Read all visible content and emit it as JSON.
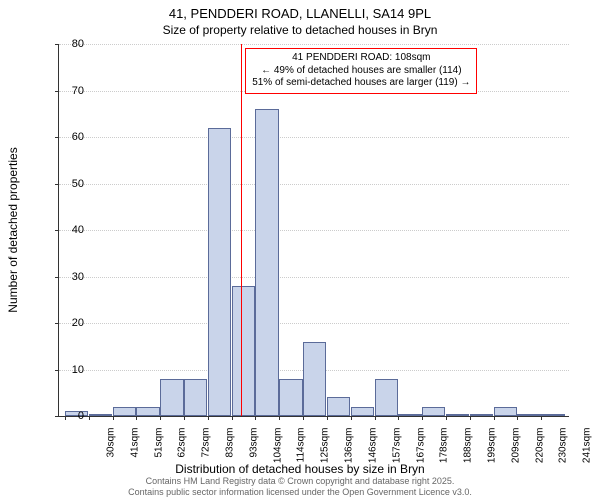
{
  "title_main": "41, PENDDERI ROAD, LLANELLI, SA14 9PL",
  "title_sub": "Size of property relative to detached houses in Bryn",
  "ylabel": "Number of detached properties",
  "xlabel": "Distribution of detached houses by size in Bryn",
  "footer_line1": "Contains HM Land Registry data © Crown copyright and database right 2025.",
  "footer_line2": "Contains public sector information licensed under the Open Government Licence v3.0.",
  "chart": {
    "type": "histogram",
    "ylim": [
      0,
      80
    ],
    "ytick_step": 10,
    "yticks": [
      0,
      10,
      20,
      30,
      40,
      50,
      60,
      70,
      80
    ],
    "xticks": [
      "30sqm",
      "41sqm",
      "51sqm",
      "62sqm",
      "72sqm",
      "83sqm",
      "93sqm",
      "104sqm",
      "114sqm",
      "125sqm",
      "136sqm",
      "146sqm",
      "157sqm",
      "167sqm",
      "178sqm",
      "188sqm",
      "199sqm",
      "209sqm",
      "220sqm",
      "230sqm",
      "241sqm"
    ],
    "bars": [
      1,
      0,
      2,
      2,
      8,
      8,
      62,
      28,
      66,
      8,
      16,
      4,
      2,
      8,
      0,
      2,
      0,
      0,
      2,
      0,
      0
    ],
    "bar_fill": "#c9d4ea",
    "bar_stroke": "#5b6b99",
    "grid_color": "#cccccc",
    "background": "#ffffff",
    "marker_index": 8,
    "marker_color": "#ff0000",
    "annotation": {
      "line1": "41 PENDDERI ROAD: 108sqm",
      "line2": "← 49% of detached houses are smaller (114)",
      "line3": "51% of semi-detached houses are larger (119) →"
    }
  }
}
